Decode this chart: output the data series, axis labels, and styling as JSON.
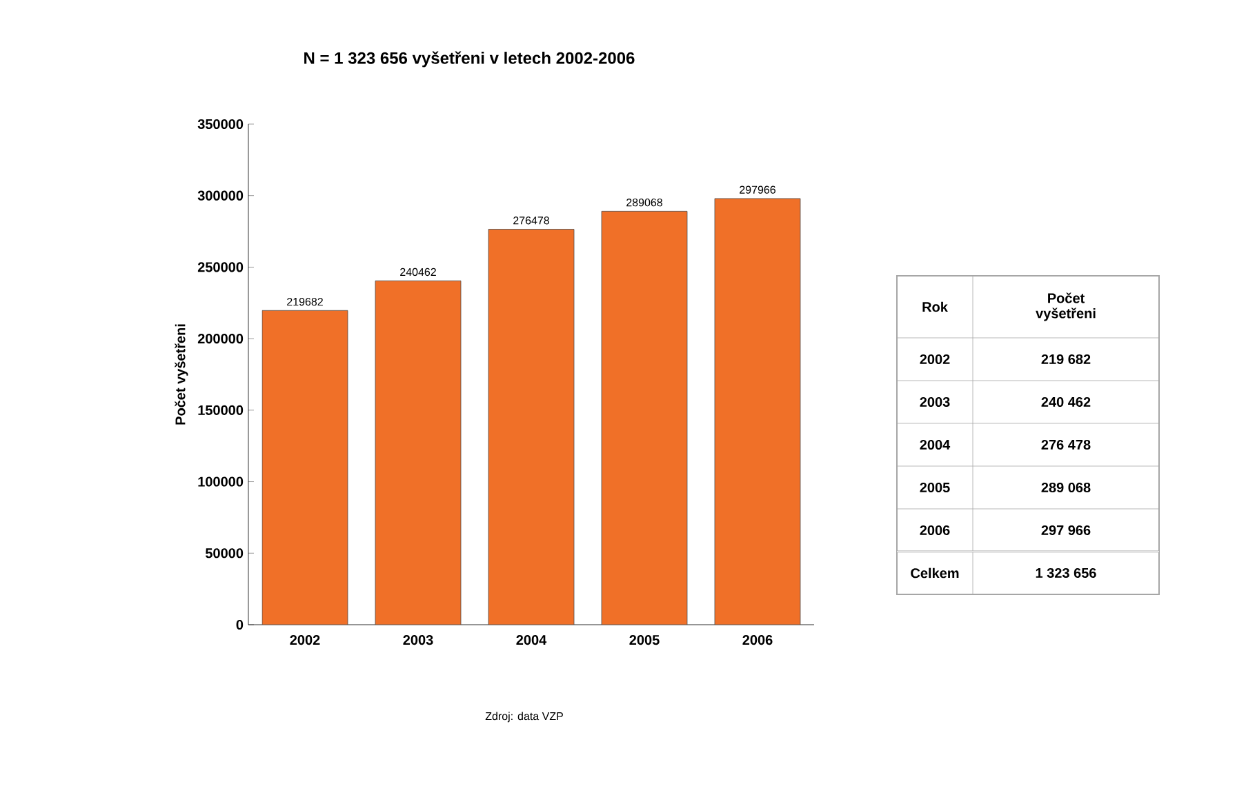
{
  "chart_data": {
    "type": "bar",
    "title": "N = 1 323 656 vyšetřeni v letech 2002-2006",
    "ylabel": "Počet vyšetřeni",
    "categories": [
      "2002",
      "2003",
      "2004",
      "2005",
      "2006"
    ],
    "values": [
      219682,
      240462,
      276478,
      289068,
      297966
    ],
    "color": "#f07028",
    "ylim": [
      0,
      350000
    ],
    "yticks": [
      0,
      50000,
      100000,
      150000,
      200000,
      250000,
      300000,
      350000
    ],
    "data_labels": true,
    "annotations": [
      "Rok",
      "Počet vyšetřeni",
      "219 682",
      "240 462",
      "276 478",
      "289 068",
      "297 966",
      "Celkem",
      "1 323 656",
      "Zdroj: data VZP"
    ]
  }
}
